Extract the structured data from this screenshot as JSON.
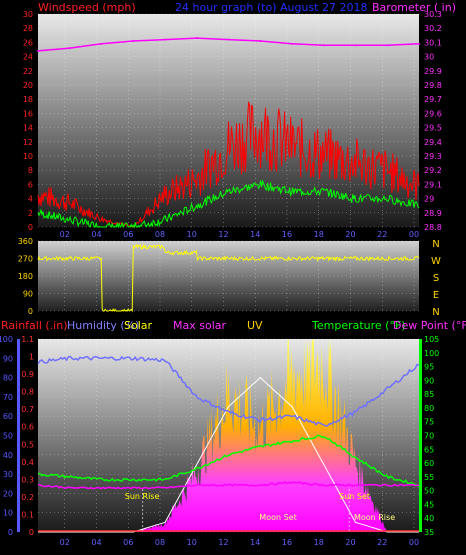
{
  "header": {
    "left_label": "Windspeed (mph)",
    "title": "24 hour graph (to)   August 27 2018",
    "right_label": "Barometer ( in)"
  },
  "mid_header": {
    "rainfall": "Rainfall (.in)",
    "humidity": "Humidity (%)",
    "solar": "Solar",
    "max_solar": "Max solar",
    "uv": "UV",
    "temperature": "Temperature (°F)",
    "dew_point": "Dew Point (°F)"
  },
  "colors": {
    "wind": "#ff0000",
    "gust": "#00ff00",
    "barometer": "#ff00ff",
    "direction": "#ffff00",
    "humidity": "#7070ff",
    "temperature": "#00ff00",
    "dew_point": "#ff00ff",
    "solar": "#ffff00",
    "max_solar": "#ffffff",
    "rainfall": "#ff3030",
    "axis_temp": "#00ff00",
    "axis_humidity": "#5858ff"
  },
  "x_ticks": [
    "02",
    "04",
    "06",
    "08",
    "10",
    "12",
    "14",
    "16",
    "18",
    "20",
    "22",
    "00"
  ],
  "annotations": {
    "sun_rise": "Sun Rise",
    "sun_set": "Sun Set",
    "moon_set": "Moon Set",
    "moon_rise": "Moon Rise"
  },
  "chart_data": [
    {
      "type": "line",
      "title": "24 hour graph (to)   August 27 2018",
      "xlabel": "",
      "ylabel": "Windspeed (mph)",
      "y2label": "Barometer ( in)",
      "x": [
        "00",
        "02",
        "04",
        "06",
        "08",
        "10",
        "12",
        "14",
        "16",
        "18",
        "20",
        "22",
        "00"
      ],
      "ylim": [
        0,
        30
      ],
      "y2lim": [
        28.8,
        30.3
      ],
      "yticks": [
        0,
        2,
        4,
        6,
        8,
        10,
        12,
        14,
        16,
        18,
        20,
        22,
        24,
        26,
        28,
        30
      ],
      "y2ticks": [
        "28.8",
        "28.9",
        "29",
        "29.1",
        "29.2",
        "29.3",
        "29.4",
        "29.5",
        "29.6",
        "29.7",
        "29.8",
        "29.9",
        "30",
        "30.1",
        "30.2",
        "30.3"
      ],
      "series": [
        {
          "name": "Windspeed (mph)",
          "axis": "left",
          "values": [
            4,
            3,
            1,
            0,
            4,
            6,
            10,
            12,
            10,
            9,
            8,
            7,
            5
          ]
        },
        {
          "name": "",
          "axis": "left",
          "values": [
            2,
            1,
            0,
            0,
            1,
            3,
            5,
            6,
            5,
            5,
            4,
            4,
            3
          ]
        },
        {
          "name": "Barometer ( in)",
          "axis": "right",
          "values": [
            30.04,
            30.06,
            30.09,
            30.11,
            30.12,
            30.13,
            30.12,
            30.11,
            30.09,
            30.08,
            30.08,
            30.08,
            30.09
          ]
        }
      ]
    },
    {
      "type": "scatter",
      "ylabel": "",
      "x": [
        "00",
        "02",
        "04",
        "06",
        "08",
        "10",
        "12",
        "14",
        "16",
        "18",
        "20",
        "22",
        "00"
      ],
      "ylim": [
        0,
        360
      ],
      "yticks": [
        0,
        90,
        180,
        270,
        360
      ],
      "compass": [
        "N",
        "W",
        "S",
        "E",
        "N"
      ],
      "series": [
        {
          "name": "",
          "values": [
            270,
            270,
            0,
            330,
            300,
            270,
            270,
            270,
            270,
            270,
            270,
            270,
            270
          ]
        }
      ]
    },
    {
      "type": "area",
      "x": [
        "00",
        "02",
        "04",
        "06",
        "08",
        "10",
        "12",
        "14",
        "16",
        "18",
        "20",
        "22",
        "00"
      ],
      "ylim": [
        0,
        100
      ],
      "yticks": [
        0,
        10,
        20,
        30,
        40,
        50,
        60,
        70,
        80,
        90,
        100
      ],
      "rain_ticks": [
        "0",
        "0.1",
        "0.2",
        "0.3",
        "0.4",
        "0.5",
        "0.6",
        "0.7",
        "0.8",
        "0.9",
        "1",
        "1.1"
      ],
      "temp_ticks": [
        35,
        40,
        45,
        50,
        55,
        60,
        65,
        70,
        75,
        80,
        85,
        90,
        95,
        100,
        105
      ],
      "temp_ylim": [
        35,
        105
      ],
      "series": [
        {
          "name": "Humidity (%)",
          "axis": "humidity",
          "values": [
            88,
            90,
            90,
            90,
            89,
            70,
            62,
            58,
            60,
            55,
            62,
            74,
            87
          ]
        },
        {
          "name": "Temperature (°F)",
          "axis": "temp",
          "values": [
            56,
            55,
            54,
            54,
            54,
            58,
            63,
            66,
            68,
            70,
            62,
            55,
            52
          ]
        },
        {
          "name": "Dew Point (°F)",
          "axis": "temp",
          "values": [
            52,
            51,
            51,
            51,
            51,
            52,
            52,
            52,
            53,
            52,
            52,
            52,
            52
          ]
        },
        {
          "name": "Solar",
          "axis": "humidity",
          "values": [
            0,
            0,
            0,
            0,
            5,
            35,
            80,
            60,
            90,
            100,
            40,
            0,
            0
          ]
        },
        {
          "name": "Max solar",
          "axis": "humidity",
          "values": [
            0,
            0,
            0,
            0,
            5,
            35,
            65,
            80,
            65,
            35,
            5,
            0,
            0
          ]
        },
        {
          "name": "Rainfall (.in)",
          "axis": "rain",
          "values": [
            0,
            0,
            0,
            0,
            0,
            0,
            0,
            0,
            0,
            0,
            0,
            0,
            0
          ]
        }
      ]
    }
  ]
}
